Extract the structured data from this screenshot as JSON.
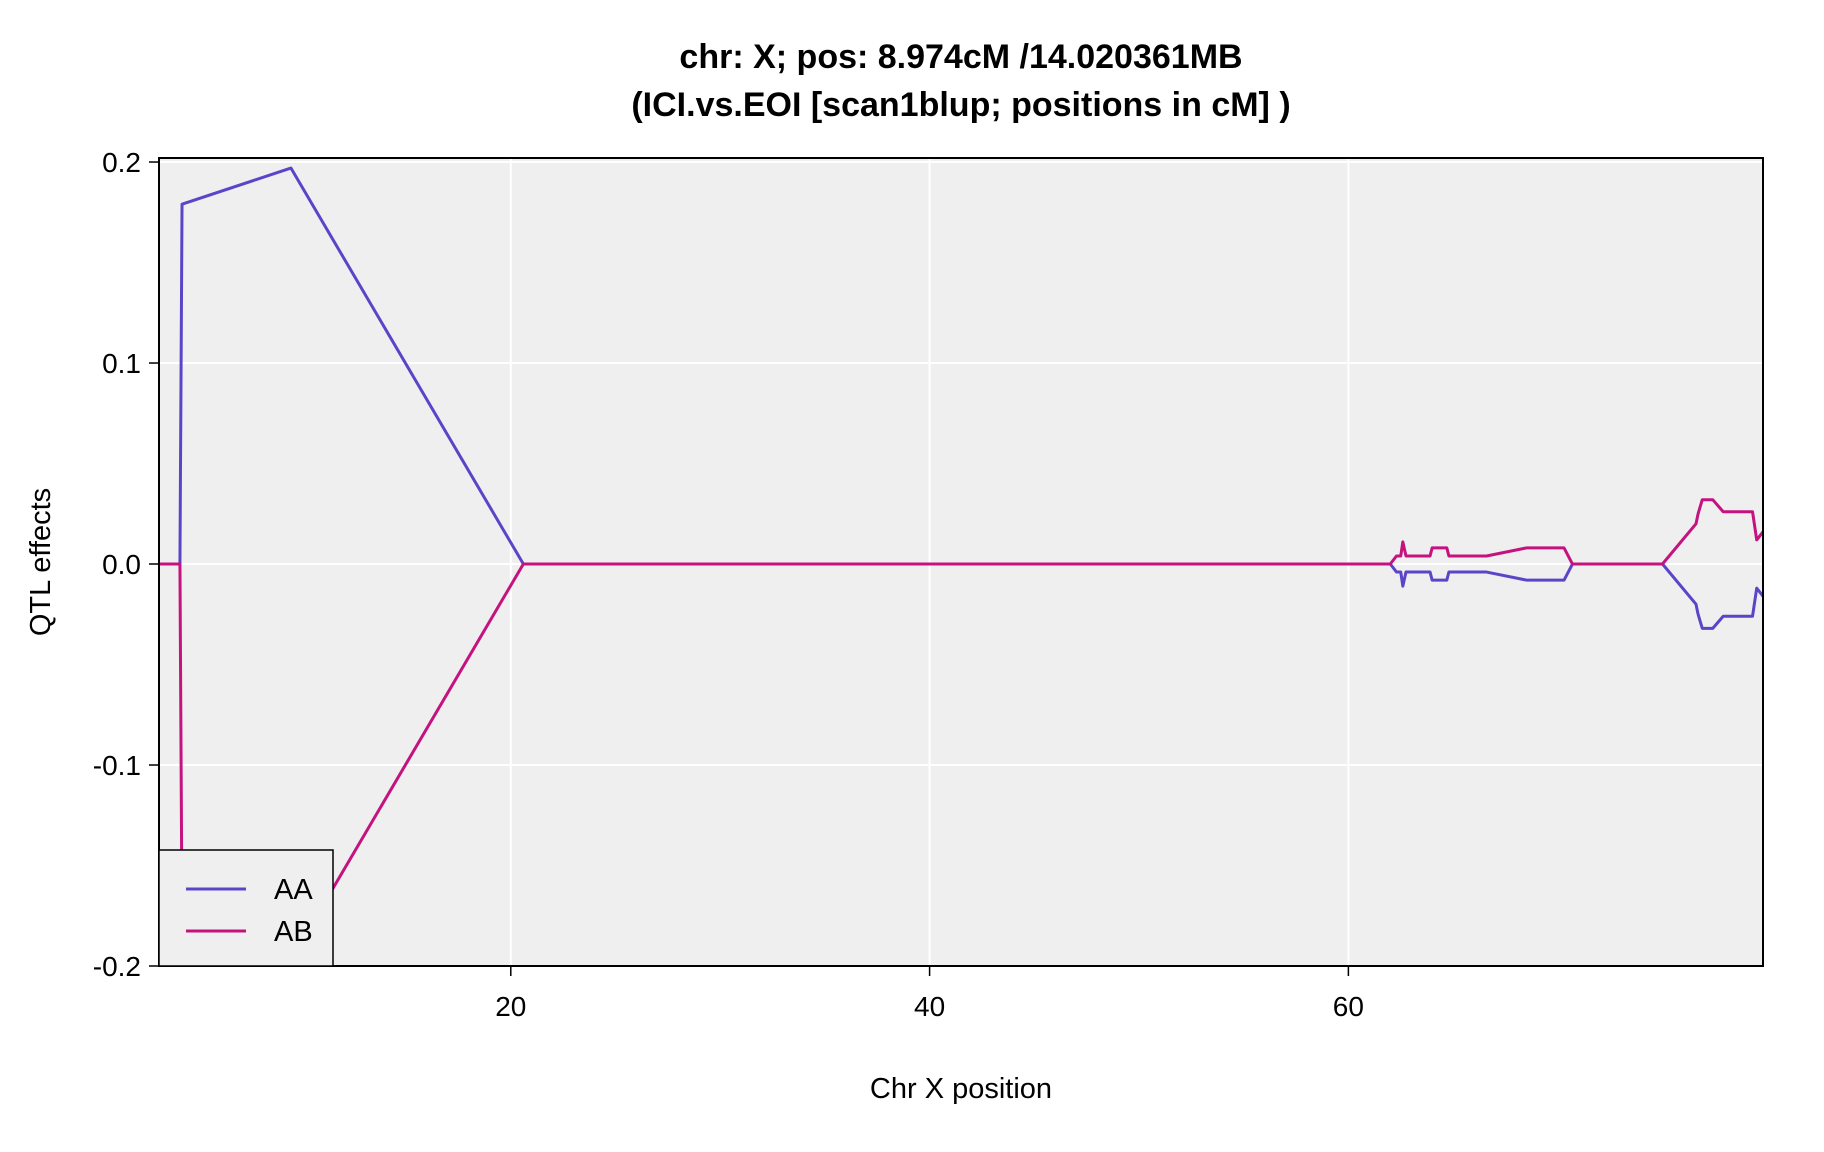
{
  "chart_data": {
    "type": "line",
    "title_line1": "chr: X; pos: 8.974cM /14.020361MB",
    "title_line2": "(ICI.vs.EOI [scan1blup; positions in cM] )",
    "xlabel": "Chr X position",
    "ylabel": "QTL effects",
    "xlim": [
      3.2,
      79.8
    ],
    "ylim": [
      -0.2,
      0.202
    ],
    "x_ticks": [
      20,
      40,
      60
    ],
    "x_tick_labels": [
      "20",
      "40",
      "60"
    ],
    "y_ticks": [
      -0.2,
      -0.1,
      0.0,
      0.1,
      0.2
    ],
    "y_tick_labels": [
      "-0.2",
      "-0.1",
      "0.0",
      "0.1",
      "0.2"
    ],
    "grid": true,
    "panel_background": "#efefef",
    "legend_position": "bottom-left",
    "series": [
      {
        "name": "AA",
        "color": "#5a45c8",
        "x": [
          3.2,
          4.2,
          4.3,
          9.5,
          20.6,
          62.0,
          62.3,
          62.5,
          62.6,
          62.75,
          62.9,
          63.4,
          63.9,
          64.0,
          64.7,
          64.8,
          66.6,
          68.5,
          70.3,
          70.7,
          75.0,
          76.6,
          76.7,
          76.9,
          77.4,
          77.9,
          78.1,
          79.3,
          79.5,
          79.8
        ],
        "y": [
          0.0,
          0.0,
          0.179,
          0.197,
          0.0,
          0.0,
          -0.004,
          -0.004,
          -0.011,
          -0.004,
          -0.004,
          -0.004,
          -0.004,
          -0.008,
          -0.008,
          -0.004,
          -0.004,
          -0.008,
          -0.008,
          0.0,
          0.0,
          -0.02,
          -0.025,
          -0.032,
          -0.032,
          -0.026,
          -0.026,
          -0.026,
          -0.012,
          -0.016
        ]
      },
      {
        "name": "AB",
        "color": "#c4137f",
        "x": [
          3.2,
          4.2,
          4.3,
          9.5,
          20.6,
          62.0,
          62.3,
          62.5,
          62.6,
          62.75,
          62.9,
          63.4,
          63.9,
          64.0,
          64.7,
          64.8,
          66.6,
          68.5,
          70.3,
          70.7,
          75.0,
          76.6,
          76.7,
          76.9,
          77.4,
          77.9,
          78.1,
          79.3,
          79.5,
          79.8
        ],
        "y": [
          0.0,
          0.0,
          -0.179,
          -0.197,
          0.0,
          0.0,
          0.004,
          0.004,
          0.011,
          0.004,
          0.004,
          0.004,
          0.004,
          0.008,
          0.008,
          0.004,
          0.004,
          0.008,
          0.008,
          0.0,
          0.0,
          0.02,
          0.025,
          0.032,
          0.032,
          0.026,
          0.026,
          0.026,
          0.012,
          0.016
        ]
      }
    ]
  }
}
